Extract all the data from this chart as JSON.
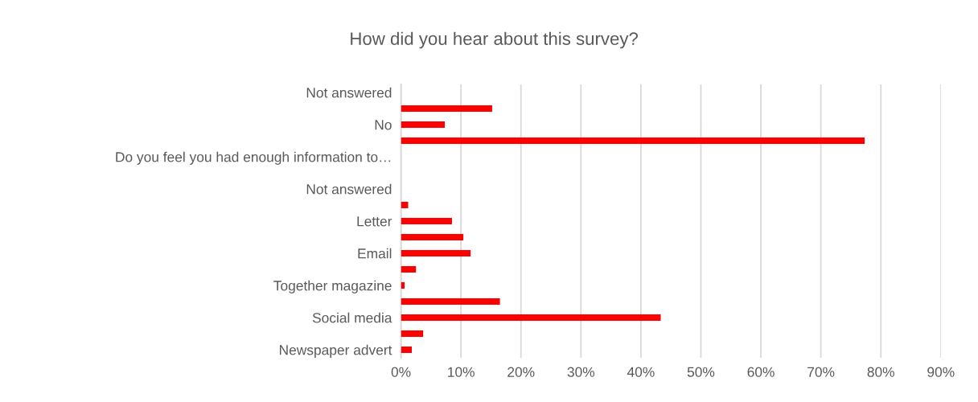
{
  "chart_data": {
    "type": "bar",
    "orientation": "horizontal",
    "title": "How did you hear about this survey?",
    "categories": [
      "Not answered",
      null,
      "No",
      null,
      "Do you feel you had enough information to…",
      null,
      "Not answered",
      null,
      "Letter",
      null,
      "Email",
      null,
      "Together magazine",
      null,
      "Social media",
      null,
      "Newspaper advert"
    ],
    "values": [
      0,
      15.2,
      7.3,
      77.3,
      0,
      0,
      0,
      1.2,
      8.5,
      10.4,
      11.6,
      2.5,
      0.6,
      16.5,
      43.3,
      3.7,
      1.8
    ],
    "color": "#ff0000",
    "xlim": [
      0,
      90
    ],
    "xticks": [
      {
        "value": 0,
        "label": "0%"
      },
      {
        "value": 10,
        "label": "10%"
      },
      {
        "value": 20,
        "label": "20%"
      },
      {
        "value": 30,
        "label": "30%"
      },
      {
        "value": 40,
        "label": "40%"
      },
      {
        "value": 50,
        "label": "50%"
      },
      {
        "value": 60,
        "label": "60%"
      },
      {
        "value": 70,
        "label": "70%"
      },
      {
        "value": 80,
        "label": "80%"
      },
      {
        "value": 90,
        "label": "90%"
      }
    ],
    "grid": "x",
    "legend": false
  }
}
